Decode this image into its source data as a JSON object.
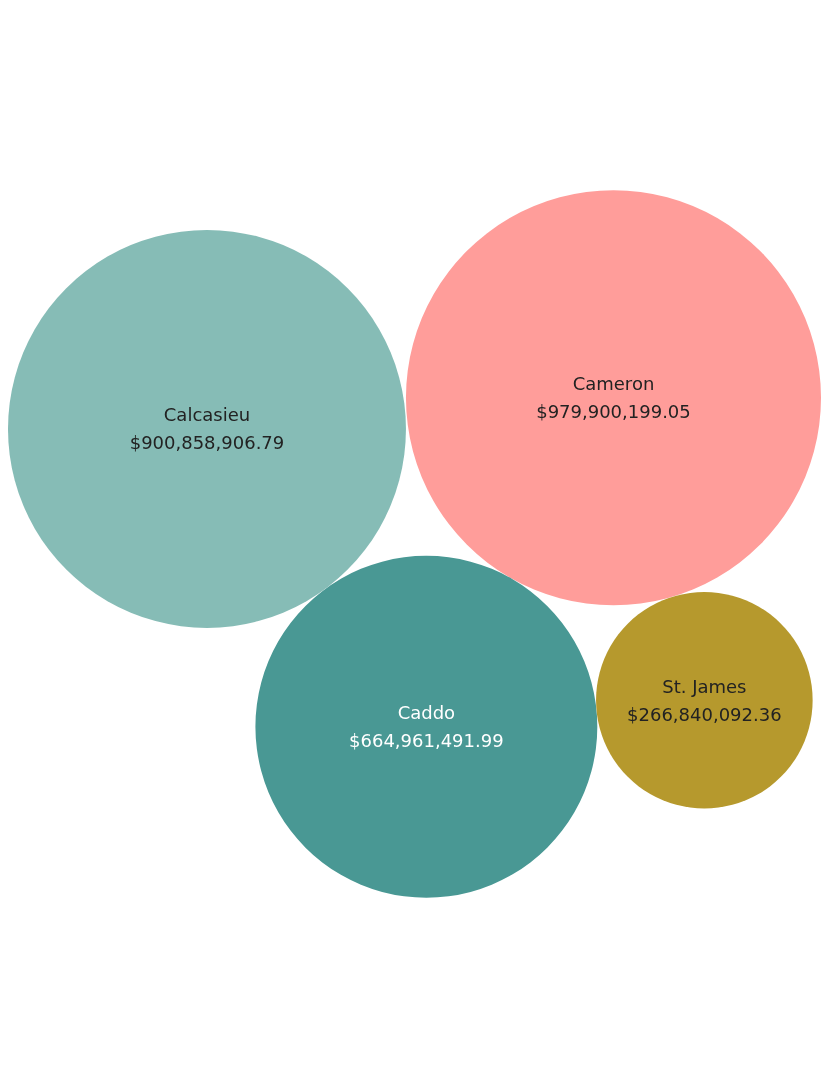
{
  "chart_data": {
    "type": "other",
    "categories": [
      "Cameron",
      "Calcasieu",
      "Caddo",
      "St. James"
    ],
    "values": [
      979900199.05,
      900858906.79,
      664961491.99,
      266840092.36
    ],
    "value_labels": [
      "$979,900,199.05",
      "$900,858,906.79",
      "$664,961,491.99",
      "$266,840,092.36"
    ],
    "colors": [
      "#ff9d9a",
      "#86bcb6",
      "#499894",
      "#b6992d"
    ]
  }
}
